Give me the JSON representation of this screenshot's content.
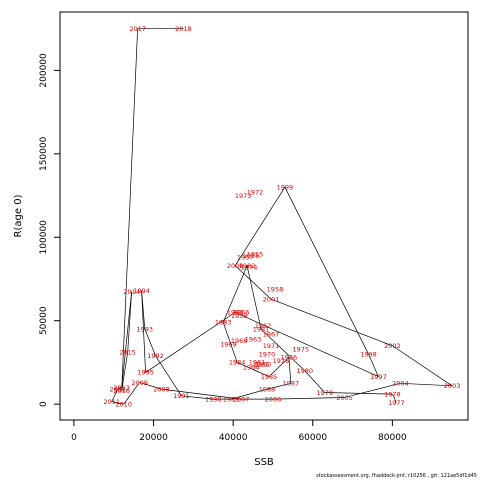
{
  "chart_data": {
    "type": "line",
    "title": "",
    "xlabel": "SSB",
    "ylabel": "R(age 0)",
    "xlim": [
      -3500,
      99000
    ],
    "ylim": [
      -9500,
      235000
    ],
    "x_ticks": [
      0,
      20000,
      40000,
      60000,
      80000
    ],
    "x_tick_labels": [
      "0",
      "20000",
      "40000",
      "60000",
      "80000"
    ],
    "y_ticks": [
      0,
      50000,
      100000,
      150000,
      200000
    ],
    "y_tick_labels": [
      "0",
      "50000",
      "100000",
      "150000",
      "200000"
    ],
    "grid": false,
    "line_color": "#000000",
    "label_color": "#dd0000",
    "series": [
      {
        "points": [
          {
            "year": "1977",
            "x": 81000,
            "y": 1000
          },
          {
            "year": "1978",
            "x": 80000,
            "y": 6000
          },
          {
            "year": "1979",
            "x": 63000,
            "y": 7000
          },
          {
            "year": "1980",
            "x": 58000,
            "y": 20000
          },
          {
            "year": "1981",
            "x": 47000,
            "y": 45000
          },
          {
            "year": "1982",
            "x": 43500,
            "y": 83000
          },
          {
            "year": "1983",
            "x": 37500,
            "y": 49000
          },
          {
            "year": "1984",
            "x": 41000,
            "y": 25000
          },
          {
            "year": "1985",
            "x": 49000,
            "y": 16500
          },
          {
            "year": "1986",
            "x": 54000,
            "y": 28000
          },
          {
            "year": "1987",
            "x": 54500,
            "y": 12500
          },
          {
            "year": "1988",
            "x": 48500,
            "y": 9000
          },
          {
            "year": "1989",
            "x": 39500,
            "y": 3000
          },
          {
            "year": "1990",
            "x": 35000,
            "y": 3000
          },
          {
            "year": "1991",
            "x": 27000,
            "y": 5000
          },
          {
            "year": "1992",
            "x": 20500,
            "y": 29000
          },
          {
            "year": "1993",
            "x": 17800,
            "y": 45000
          },
          {
            "year": "1994",
            "x": 17000,
            "y": 68000
          },
          {
            "year": "1995",
            "x": 18000,
            "y": 19000
          },
          {
            "year": "1996",
            "x": 40500,
            "y": 55000
          },
          {
            "year": "1997",
            "x": 76500,
            "y": 16500
          },
          {
            "year": "1998",
            "x": 74000,
            "y": 30000
          },
          {
            "year": "1999",
            "x": 53000,
            "y": 130000
          },
          {
            "year": "2000",
            "x": 40500,
            "y": 83000
          },
          {
            "year": "2001",
            "x": 49500,
            "y": 63000
          },
          {
            "year": "2002",
            "x": 80000,
            "y": 35000
          },
          {
            "year": "2003",
            "x": 95000,
            "y": 11000
          },
          {
            "year": "2004",
            "x": 82000,
            "y": 12500
          },
          {
            "year": "2005",
            "x": 68000,
            "y": 4000
          },
          {
            "year": "2006",
            "x": 50000,
            "y": 3000
          },
          {
            "year": "2007",
            "x": 42000,
            "y": 3000
          },
          {
            "year": "2008",
            "x": 22000,
            "y": 9000
          },
          {
            "year": "2009",
            "x": 16500,
            "y": 13000
          },
          {
            "year": "2010",
            "x": 12500,
            "y": 0
          },
          {
            "year": "2011",
            "x": 9500,
            "y": 1500
          },
          {
            "year": "2012",
            "x": 11000,
            "y": 9000
          },
          {
            "year": "2013",
            "x": 12000,
            "y": 10000
          },
          {
            "year": "2014",
            "x": 14500,
            "y": 67500
          },
          {
            "year": "2015",
            "x": 13500,
            "y": 31000
          },
          {
            "year": "2016",
            "x": 12000,
            "y": 8000
          },
          {
            "year": "2017",
            "x": 16000,
            "y": 225000
          },
          {
            "year": "2018",
            "x": 27500,
            "y": 225000
          }
        ]
      }
    ],
    "extra_labels": [
      {
        "text": "1966",
        "x": 42000,
        "y": 55000
      },
      {
        "text": "1967",
        "x": 49500,
        "y": 42000
      },
      {
        "text": "1968",
        "x": 41500,
        "y": 38000
      },
      {
        "text": "1969",
        "x": 38800,
        "y": 36000
      },
      {
        "text": "1970",
        "x": 48500,
        "y": 30000
      },
      {
        "text": "1971",
        "x": 49500,
        "y": 35000
      },
      {
        "text": "1972",
        "x": 45500,
        "y": 127000
      },
      {
        "text": "1973",
        "x": 42500,
        "y": 125000
      },
      {
        "text": "1974",
        "x": 44000,
        "y": 82000
      },
      {
        "text": "1975",
        "x": 57000,
        "y": 33000
      },
      {
        "text": "1976",
        "x": 52000,
        "y": 26000
      },
      {
        "text": "1955",
        "x": 45500,
        "y": 90000
      },
      {
        "text": "1956",
        "x": 44500,
        "y": 89000
      },
      {
        "text": "1957",
        "x": 43000,
        "y": 88000
      },
      {
        "text": "1958",
        "x": 50500,
        "y": 69000
      },
      {
        "text": "1959",
        "x": 41500,
        "y": 53000
      },
      {
        "text": "1960",
        "x": 47500,
        "y": 24000
      },
      {
        "text": "1961",
        "x": 46000,
        "y": 25000
      },
      {
        "text": "1962",
        "x": 47500,
        "y": 47000
      },
      {
        "text": "1963",
        "x": 45000,
        "y": 39000
      },
      {
        "text": "1964",
        "x": 44500,
        "y": 22000
      },
      {
        "text": "1965",
        "x": 47000,
        "y": 23500
      }
    ],
    "footer": "stockassessment.org, fhaddock-jmf, r10256 , git: 121ae5df1d45"
  }
}
